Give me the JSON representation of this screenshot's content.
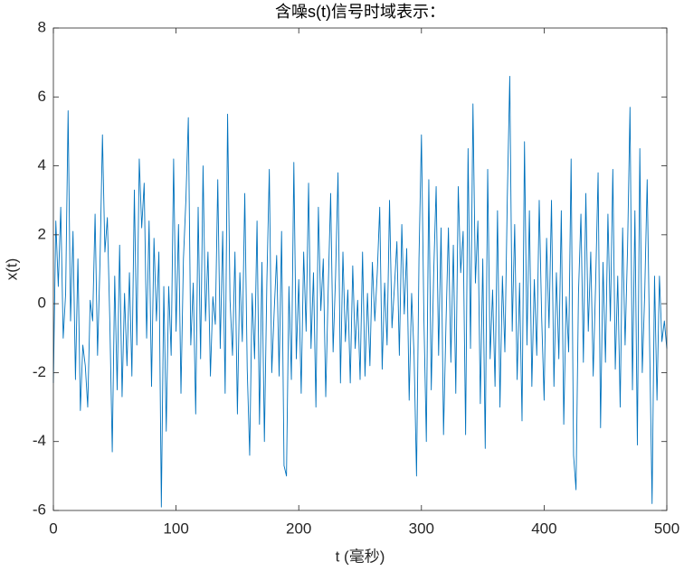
{
  "chart_data": {
    "type": "line",
    "title": "含噪s(t)信号时域表示：",
    "xlabel": "t (毫秒)",
    "ylabel": "x(t)",
    "x": [
      0,
      2,
      4,
      6,
      8,
      10,
      12,
      14,
      16,
      18,
      20,
      22,
      24,
      26,
      28,
      30,
      32,
      34,
      36,
      38,
      40,
      42,
      44,
      46,
      48,
      50,
      52,
      54,
      56,
      58,
      60,
      62,
      64,
      66,
      68,
      70,
      72,
      74,
      76,
      78,
      80,
      82,
      84,
      86,
      88,
      90,
      92,
      94,
      96,
      98,
      100,
      102,
      104,
      106,
      108,
      110,
      112,
      114,
      116,
      118,
      120,
      122,
      124,
      126,
      128,
      130,
      132,
      134,
      136,
      138,
      140,
      142,
      144,
      146,
      148,
      150,
      152,
      154,
      156,
      158,
      160,
      162,
      164,
      166,
      168,
      170,
      172,
      174,
      176,
      178,
      180,
      182,
      184,
      186,
      188,
      190,
      192,
      194,
      196,
      198,
      200,
      202,
      204,
      206,
      208,
      210,
      212,
      214,
      216,
      218,
      220,
      222,
      224,
      226,
      228,
      230,
      232,
      234,
      236,
      238,
      240,
      242,
      244,
      246,
      248,
      250,
      252,
      254,
      256,
      258,
      260,
      262,
      264,
      266,
      268,
      270,
      272,
      274,
      276,
      278,
      280,
      282,
      284,
      286,
      288,
      290,
      292,
      294,
      296,
      298,
      300,
      302,
      304,
      306,
      308,
      310,
      312,
      314,
      316,
      318,
      320,
      322,
      324,
      326,
      328,
      330,
      332,
      334,
      336,
      338,
      340,
      342,
      344,
      346,
      348,
      350,
      352,
      354,
      356,
      358,
      360,
      362,
      364,
      366,
      368,
      370,
      372,
      374,
      376,
      378,
      380,
      382,
      384,
      386,
      388,
      390,
      392,
      394,
      396,
      398,
      400,
      402,
      404,
      406,
      408,
      410,
      412,
      414,
      416,
      418,
      420,
      422,
      424,
      426,
      428,
      430,
      432,
      434,
      436,
      438,
      440,
      442,
      444,
      446,
      448,
      450,
      452,
      454,
      456,
      458,
      460,
      462,
      464,
      466,
      468,
      470,
      472,
      474,
      476,
      478,
      480,
      482,
      484,
      486,
      488,
      490,
      492,
      494,
      496,
      498,
      500
    ],
    "series": [
      {
        "name": "x(t)",
        "color": "#0072bd",
        "values": [
          -2.3,
          2.4,
          0.5,
          2.8,
          -1,
          0.3,
          5.6,
          -0.5,
          2.1,
          -2.2,
          1.3,
          -3.1,
          -1.2,
          -1.8,
          -3,
          0.1,
          -0.5,
          2.6,
          -1.5,
          1.2,
          4.9,
          1.5,
          2.5,
          -0.5,
          -4.3,
          0.8,
          -2.5,
          1.7,
          -2.7,
          0.3,
          -1.8,
          0.9,
          -2.1,
          3.3,
          -1.2,
          4.2,
          2.2,
          3.5,
          -1,
          2.4,
          -2.4,
          1.9,
          -0.5,
          1.5,
          -5.9,
          0.5,
          -3.7,
          0.5,
          -1.5,
          4.2,
          -0.8,
          2.3,
          -2.6,
          1.3,
          3,
          5.4,
          -1.2,
          0.6,
          -3.2,
          2.8,
          -1.6,
          4,
          -0.5,
          1.5,
          -2.1,
          0.2,
          -0.6,
          3.6,
          -1.3,
          2.1,
          -2.6,
          5.5,
          0.1,
          -1.5,
          1.5,
          -3.2,
          0.9,
          -1.1,
          3.2,
          -1.9,
          -4.4,
          0.3,
          -1.6,
          2.4,
          -3.5,
          1.2,
          -4,
          0.6,
          3.9,
          -2,
          -0.2,
          1.4,
          -2.1,
          2.1,
          -4.7,
          -5,
          0.5,
          -2.2,
          4.1,
          -1.6,
          0.7,
          -2.6,
          1.5,
          -0.8,
          3.5,
          -1.3,
          0.9,
          -3,
          2.8,
          -0.2,
          1.3,
          -2.7,
          0.4,
          3.2,
          -1.4,
          0.8,
          3.8,
          -2.3,
          1.5,
          -1.1,
          0.4,
          -2.3,
          1.1,
          -1.3,
          0.1,
          -2.2,
          1.5,
          -2.1,
          0.3,
          -1.8,
          1.2,
          -0.5,
          0.9,
          2.8,
          -1.9,
          0.6,
          -1.2,
          3,
          -0.7,
          0.5,
          1.8,
          -1.5,
          2.3,
          -0.3,
          1.6,
          -2.8,
          0.3,
          -1.5,
          -5,
          1.3,
          4.9,
          -0.4,
          -4,
          3.6,
          -2.5,
          0.9,
          3.4,
          -1.5,
          2.2,
          -3.8,
          -0.6,
          2.2,
          -1.7,
          1.7,
          -2.6,
          3.4,
          0.9,
          2.1,
          -3.8,
          4.5,
          -1.3,
          5.8,
          0.6,
          2.4,
          -2.9,
          1.3,
          -4.2,
          3.9,
          -1.6,
          0.4,
          -2.4,
          2.7,
          -3,
          0.8,
          -1.4,
          3.1,
          6.6,
          -0.8,
          2.3,
          -2.2,
          0.6,
          -3.4,
          4.7,
          -1.2,
          2.7,
          -2.4,
          0.7,
          -1.5,
          3,
          -0.4,
          -2.8,
          1.9,
          -0.7,
          3,
          -2.4,
          0.9,
          -1.6,
          2.7,
          -3.5,
          0.2,
          -1.4,
          4.2,
          -4.4,
          -5.4,
          0.3,
          2.6,
          -1.7,
          3.2,
          -0.8,
          1.5,
          -2.1,
          0.6,
          3.8,
          -3.6,
          1.2,
          -1.7,
          2.6,
          -0.5,
          3.9,
          -1.9,
          0.8,
          -3,
          2.2,
          -1.2,
          1.6,
          5.7,
          -2.5,
          2.7,
          -4.1,
          4.5,
          -2,
          0.3,
          3.6,
          -1.2,
          -5.8,
          0.8,
          -2.8,
          0.8,
          -1.1,
          -0.5,
          -1.3
        ]
      }
    ],
    "xlim": [
      0,
      500
    ],
    "xticks": [
      0,
      100,
      200,
      300,
      400,
      500
    ],
    "ylim": [
      -6,
      8
    ],
    "yticks": [
      -6,
      -4,
      -2,
      0,
      2,
      4,
      6,
      8
    ]
  }
}
